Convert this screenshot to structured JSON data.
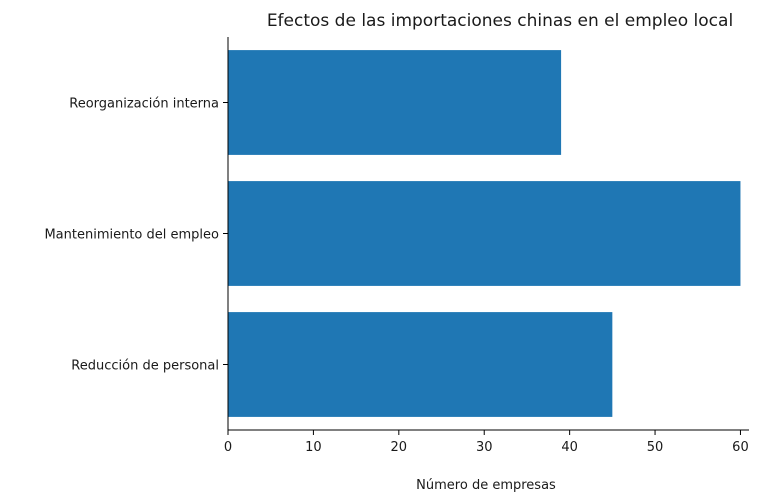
{
  "chart_data": {
    "type": "bar",
    "orientation": "horizontal",
    "title": "Efectos de las importaciones chinas en el empleo local",
    "xlabel": "Número de empresas",
    "ylabel": "",
    "categories": [
      "Reducción de personal",
      "Mantenimiento del empleo",
      "Reorganización interna"
    ],
    "values": [
      45,
      60,
      39
    ],
    "xlim": [
      0,
      61
    ],
    "xticks": [
      0,
      10,
      20,
      30,
      40,
      50,
      60
    ],
    "grid": false,
    "bar_color": "#1f77b4"
  }
}
